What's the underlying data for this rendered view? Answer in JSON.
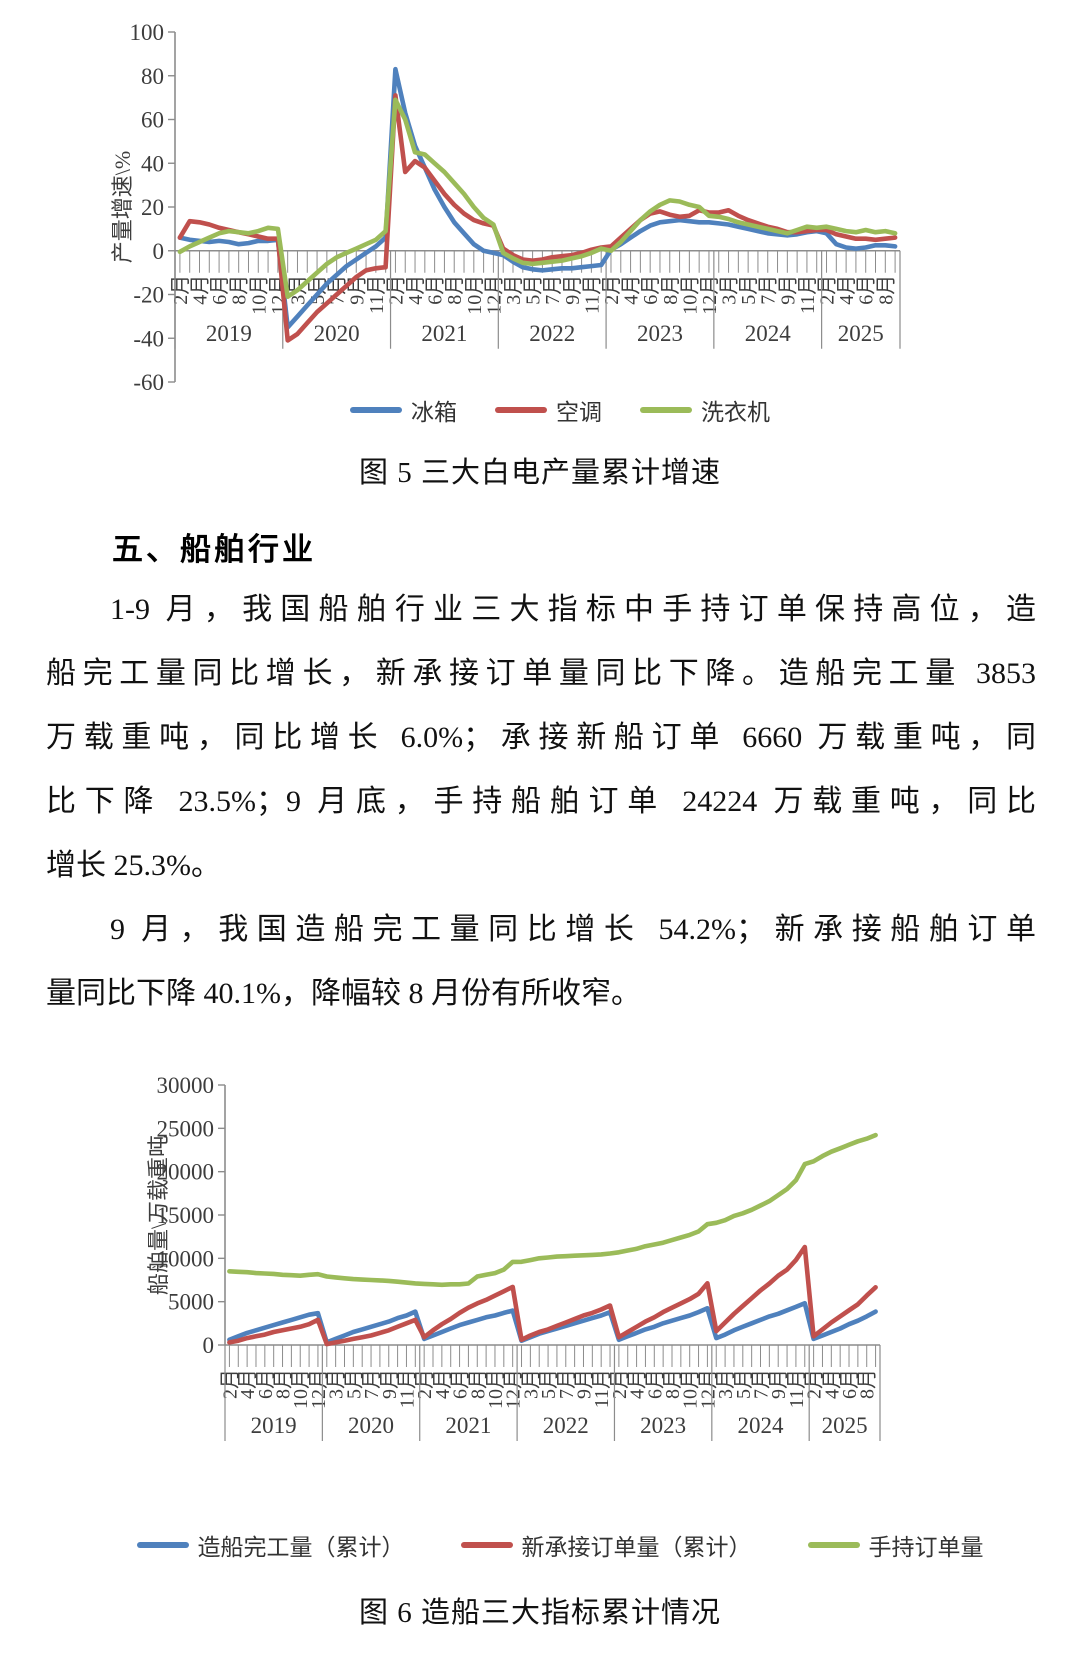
{
  "page": {
    "figure5_caption": "图 5 三大白电产量累计增速",
    "figure6_caption": "图 6 造船三大指标累计情况",
    "section_heading": "五、船舶行业",
    "para1_lines": [
      "1-9 月，我国船舶行业三大指标中手持订单保持高位，造",
      "船完工量同比增长，新承接订单量同比下降。造船完工量 3853",
      "万载重吨，同比增长 6.0%；承接新船订单 6660 万载重吨，同",
      "比下降 23.5%；9 月底，手持船舶订单 24224 万载重吨，同比",
      "增长 25.3%。"
    ],
    "para2_lines": [
      "9 月，我国造船完工量同比增长 54.2%；新承接船舶订单",
      "量同比下降 40.1%，降幅较 8 月份有所收窄。"
    ]
  },
  "chart_data": [
    {
      "type": "line",
      "title": "图 5 三大白电产量累计增速",
      "xlabel": "",
      "ylabel": "产量增速\\%",
      "ylim": [
        -60,
        100
      ],
      "ytick_step": 20,
      "grid": false,
      "legend_position": "bottom",
      "years": [
        {
          "label": "2019",
          "span": 11
        },
        {
          "label": "2020",
          "span": 11
        },
        {
          "label": "2021",
          "span": 11
        },
        {
          "label": "2022",
          "span": 11
        },
        {
          "label": "2023",
          "span": 11
        },
        {
          "label": "2024",
          "span": 11
        },
        {
          "label": "2025",
          "span": 8
        }
      ],
      "x_labels": [
        "2月",
        "",
        "4月",
        "",
        "6月",
        "",
        "8月",
        "",
        "10月",
        "",
        "12月",
        "",
        "3月",
        "",
        "5月",
        "",
        "7月",
        "",
        "9月",
        "",
        "11月",
        "",
        "2月",
        "",
        "4月",
        "",
        "6月",
        "",
        "8月",
        "",
        "10月",
        "",
        "12月",
        "",
        "3月",
        "",
        "5月",
        "",
        "7月",
        "",
        "9月",
        "",
        "11月",
        "",
        "2月",
        "",
        "4月",
        "",
        "6月",
        "",
        "8月",
        "",
        "10月",
        "",
        "12月",
        "",
        "3月",
        "",
        "5月",
        "",
        "7月",
        "",
        "9月",
        "",
        "11月",
        "",
        "2月",
        "",
        "4月",
        "",
        "6月",
        "",
        "8月",
        ""
      ],
      "series": [
        {
          "name": "冰箱",
          "color": "#4F81BD",
          "values": [
            6,
            5,
            4.5,
            4,
            4.5,
            4,
            3,
            3.5,
            4.5,
            4.5,
            5,
            -35,
            -30,
            -25,
            -20,
            -15,
            -11,
            -7,
            -4,
            -1,
            2,
            6,
            83,
            63,
            48,
            38,
            28,
            20,
            13,
            8,
            3,
            0,
            -1,
            -2,
            -5,
            -7.5,
            -8.5,
            -9,
            -8.5,
            -8,
            -8,
            -7.5,
            -7,
            -6.5,
            0.5,
            3,
            6,
            9,
            11.5,
            13,
            13.5,
            14,
            13.5,
            13,
            13,
            12.5,
            12,
            11,
            10,
            9,
            8,
            7.5,
            7,
            7.5,
            8.5,
            9,
            8,
            3,
            1.5,
            1,
            1.5,
            2.5,
            2.5,
            2
          ]
        },
        {
          "name": "空调",
          "color": "#C0504D",
          "values": [
            6,
            13.5,
            13,
            12,
            10.5,
            9.5,
            8.5,
            7.5,
            6.5,
            5.5,
            5.5,
            -41,
            -38,
            -33,
            -28,
            -24,
            -20,
            -16,
            -12,
            -9,
            -8,
            -7.5,
            71,
            36,
            41,
            38,
            32,
            26,
            21,
            17,
            14,
            12.5,
            11.5,
            1,
            -2,
            -4,
            -4.5,
            -4,
            -3,
            -2.5,
            -2,
            -1,
            0.5,
            1.5,
            2,
            6,
            10,
            14,
            17,
            18,
            16.5,
            15.5,
            16,
            18.5,
            17.5,
            17.5,
            18.5,
            16,
            14,
            12.5,
            11,
            10,
            8.5,
            8.5,
            9,
            9.5,
            9.5,
            7.5,
            6.5,
            5.5,
            5.5,
            5,
            5.5,
            6
          ]
        },
        {
          "name": "洗衣机",
          "color": "#9BBB59",
          "values": [
            -0.5,
            2,
            4,
            6,
            8,
            9,
            8.5,
            8,
            9,
            10.5,
            10,
            -21,
            -18,
            -14,
            -10,
            -6,
            -3,
            -1,
            1,
            3,
            5,
            9,
            69,
            60,
            45,
            44,
            40,
            36,
            31,
            26,
            20,
            15,
            12,
            -1,
            -3.5,
            -5.5,
            -6,
            -5.5,
            -5,
            -4.5,
            -3.5,
            -2.5,
            -1,
            1,
            0,
            4,
            9,
            14,
            18,
            21,
            23,
            22.5,
            21,
            20,
            16,
            15.5,
            14.5,
            13,
            12,
            11,
            10,
            9,
            8,
            9.5,
            11,
            10.5,
            11,
            10,
            9,
            8.5,
            9.5,
            8.5,
            9,
            8
          ]
        }
      ]
    },
    {
      "type": "line",
      "title": "图 6 造船三大指标累计情况",
      "xlabel": "",
      "ylabel": "船舶量\\万载重吨",
      "ylim": [
        0,
        30000
      ],
      "ytick_step": 5000,
      "grid": false,
      "legend_position": "bottom",
      "years": [
        {
          "label": "2019",
          "span": 11
        },
        {
          "label": "2020",
          "span": 11
        },
        {
          "label": "2021",
          "span": 11
        },
        {
          "label": "2022",
          "span": 11
        },
        {
          "label": "2023",
          "span": 11
        },
        {
          "label": "2024",
          "span": 11
        },
        {
          "label": "2025",
          "span": 8
        }
      ],
      "x_labels": [
        "2月",
        "",
        "4月",
        "",
        "6月",
        "",
        "8月",
        "",
        "10月",
        "",
        "12月",
        "",
        "3月",
        "",
        "5月",
        "",
        "7月",
        "",
        "9月",
        "",
        "11月",
        "",
        "2月",
        "",
        "4月",
        "",
        "6月",
        "",
        "8月",
        "",
        "10月",
        "",
        "12月",
        "",
        "3月",
        "",
        "5月",
        "",
        "7月",
        "",
        "9月",
        "",
        "11月",
        "",
        "2月",
        "",
        "4月",
        "",
        "6月",
        "",
        "8月",
        "",
        "10月",
        "",
        "12月",
        "",
        "3月",
        "",
        "5月",
        "",
        "7月",
        "",
        "9月",
        "",
        "11月",
        "",
        "2月",
        "",
        "4月",
        "",
        "6月",
        "",
        "8月",
        ""
      ],
      "series": [
        {
          "name": "造船完工量（累计）",
          "color": "#4F81BD",
          "values": [
            600,
            1000,
            1400,
            1700,
            2000,
            2300,
            2600,
            2900,
            3200,
            3500,
            3672,
            300,
            700,
            1100,
            1500,
            1800,
            2100,
            2400,
            2700,
            3100,
            3400,
            3853,
            700,
            1100,
            1500,
            1900,
            2300,
            2600,
            2900,
            3200,
            3400,
            3700,
            3970,
            500,
            900,
            1300,
            1600,
            1900,
            2200,
            2500,
            2800,
            3100,
            3400,
            3786,
            600,
            1000,
            1400,
            1800,
            2100,
            2500,
            2800,
            3100,
            3400,
            3800,
            4232,
            800,
            1200,
            1700,
            2100,
            2500,
            2900,
            3300,
            3600,
            4000,
            4400,
            4818,
            700,
            1100,
            1500,
            1900,
            2400,
            2800,
            3300,
            3853
          ]
        },
        {
          "name": "新承接订单量（累计）",
          "color": "#C0504D",
          "values": [
            300,
            500,
            800,
            1000,
            1200,
            1500,
            1700,
            1900,
            2100,
            2400,
            2907,
            100,
            300,
            500,
            700,
            900,
            1100,
            1400,
            1700,
            2100,
            2500,
            2893,
            900,
            1700,
            2400,
            3000,
            3700,
            4300,
            4800,
            5200,
            5700,
            6200,
            6707,
            600,
            1100,
            1500,
            1800,
            2200,
            2600,
            3000,
            3400,
            3700,
            4100,
            4552,
            900,
            1500,
            2100,
            2700,
            3200,
            3800,
            4300,
            4800,
            5300,
            5900,
            7120,
            1600,
            2600,
            3600,
            4500,
            5400,
            6300,
            7100,
            8000,
            8700,
            9800,
            11305,
            1000,
            1800,
            2600,
            3300,
            4000,
            4700,
            5700,
            6660
          ]
        },
        {
          "name": "手持订单量",
          "color": "#9BBB59",
          "values": [
            8500,
            8450,
            8400,
            8300,
            8250,
            8200,
            8100,
            8050,
            8000,
            8100,
            8166,
            7900,
            7800,
            7700,
            7600,
            7550,
            7500,
            7450,
            7400,
            7300,
            7200,
            7111,
            7050,
            7000,
            6950,
            7000,
            7000,
            7100,
            7900,
            8100,
            8300,
            8700,
            9584,
            9600,
            9800,
            10000,
            10100,
            10200,
            10250,
            10300,
            10350,
            10400,
            10450,
            10557,
            10700,
            10900,
            11100,
            11400,
            11600,
            11800,
            12100,
            12400,
            12700,
            13100,
            13939,
            14100,
            14400,
            14900,
            15200,
            15600,
            16100,
            16600,
            17300,
            18000,
            19000,
            20872,
            21200,
            21800,
            22300,
            22700,
            23100,
            23500,
            23800,
            24224
          ]
        }
      ]
    }
  ]
}
